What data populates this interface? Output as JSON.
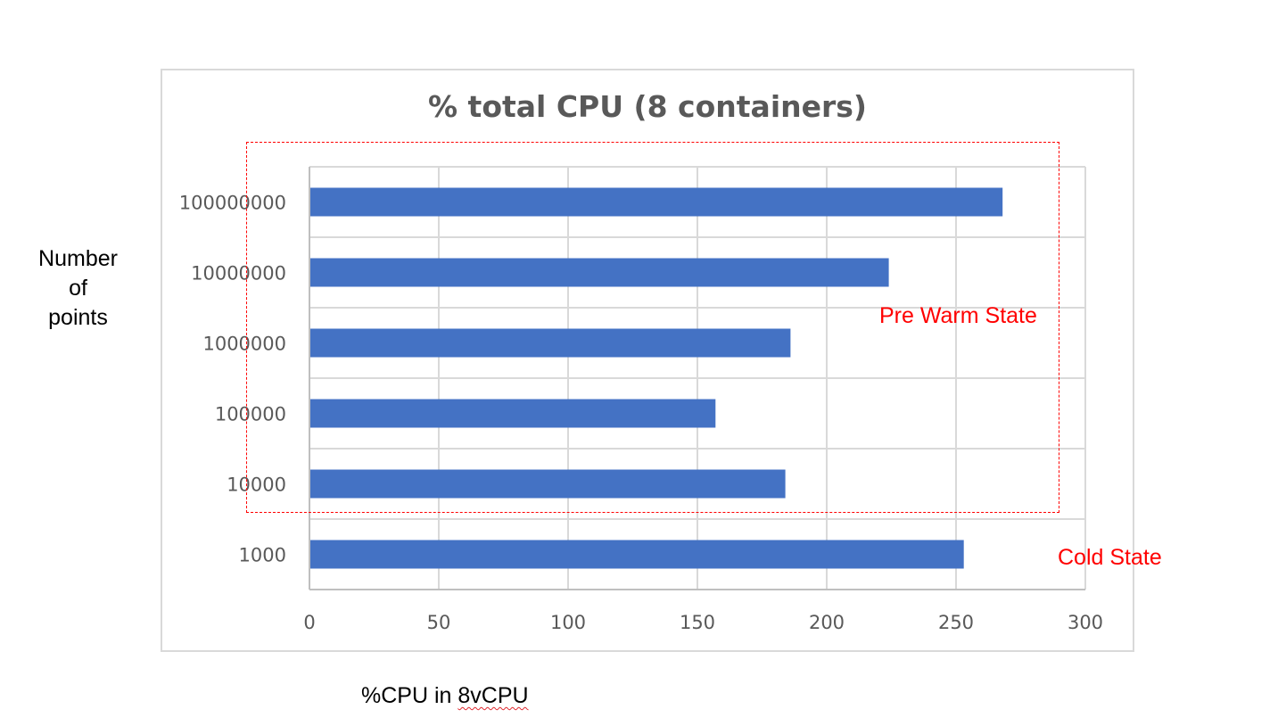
{
  "chart_data": {
    "type": "bar",
    "orientation": "horizontal",
    "title": "% total CPU (8 containers)",
    "categories": [
      "100000000",
      "10000000",
      "1000000",
      "100000",
      "10000",
      "1000"
    ],
    "values": [
      268,
      224,
      186,
      157,
      184,
      253
    ],
    "xlim": [
      0,
      300
    ],
    "xticks": [
      0,
      50,
      100,
      150,
      200,
      250,
      300
    ],
    "grid": "vertical",
    "bar_color": "#4472c4",
    "side_label": "Number\nof\npoints",
    "bottom_label_prefix": "%CPU in ",
    "bottom_label_suffix": "8vCPU",
    "annotations": {
      "pre_warm": "Pre Warm State",
      "cold": "Cold State"
    },
    "annotation_color": "#ff0000"
  }
}
